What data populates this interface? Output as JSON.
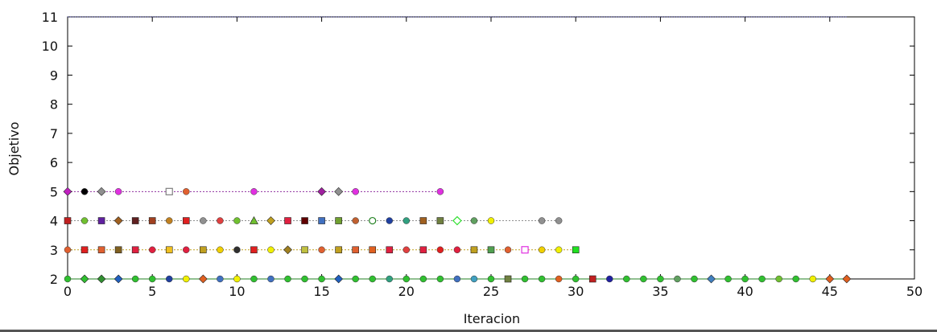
{
  "chart_data": {
    "type": "line",
    "title": "",
    "xlabel": "Iteracion",
    "ylabel": "Objetivo",
    "xlim": [
      0,
      50
    ],
    "ylim": [
      2,
      11
    ],
    "xticks": [
      0,
      5,
      10,
      15,
      20,
      25,
      30,
      35,
      40,
      45,
      50
    ],
    "yticks": [
      2,
      3,
      4,
      5,
      6,
      7,
      8,
      9,
      10,
      11
    ],
    "grid": false,
    "legend": "none",
    "series": [
      {
        "color": "#202080",
        "style": "dotted",
        "values": [
          [
            0,
            11
          ],
          [
            46,
            11
          ]
        ]
      },
      {
        "color": "#9030a0",
        "style": "dotted",
        "points": [
          {
            "x": 0,
            "marker": "diamond",
            "color": "#c020c0"
          },
          {
            "x": 1,
            "marker": "circle",
            "color": "#000000"
          },
          {
            "x": 2,
            "marker": "diamond",
            "color": "#909090"
          },
          {
            "x": 3,
            "marker": "circle",
            "color": "#e030e0"
          },
          {
            "x": 6,
            "marker": "square-open",
            "color": "#808080"
          },
          {
            "x": 7,
            "marker": "circle",
            "color": "#e06030"
          },
          {
            "x": 11,
            "marker": "circle",
            "color": "#e030e0"
          },
          {
            "x": 15,
            "marker": "diamond",
            "color": "#a020a0"
          },
          {
            "x": 16,
            "marker": "diamond",
            "color": "#909090"
          },
          {
            "x": 17,
            "marker": "circle",
            "color": "#e030e0"
          },
          {
            "x": 22,
            "marker": "circle",
            "color": "#e030e0"
          }
        ],
        "y": 5
      },
      {
        "color": "#909090",
        "style": "dotted",
        "points": [
          {
            "x": 0,
            "marker": "square",
            "color": "#c02020"
          },
          {
            "x": 1,
            "marker": "circle",
            "color": "#70c030"
          },
          {
            "x": 2,
            "marker": "square",
            "color": "#6020a0"
          },
          {
            "x": 3,
            "marker": "diamond",
            "color": "#a06020"
          },
          {
            "x": 4,
            "marker": "square",
            "color": "#602020"
          },
          {
            "x": 5,
            "marker": "square",
            "color": "#a04020"
          },
          {
            "x": 6,
            "marker": "circle",
            "color": "#c08020"
          },
          {
            "x": 7,
            "marker": "square",
            "color": "#e02020"
          },
          {
            "x": 8,
            "marker": "circle",
            "color": "#909090"
          },
          {
            "x": 9,
            "marker": "circle",
            "color": "#e04040"
          },
          {
            "x": 10,
            "marker": "circle",
            "color": "#70c030"
          },
          {
            "x": 11,
            "marker": "triangle",
            "color": "#70c030"
          },
          {
            "x": 12,
            "marker": "diamond",
            "color": "#c0a020"
          },
          {
            "x": 13,
            "marker": "square",
            "color": "#e02040"
          },
          {
            "x": 14,
            "marker": "square",
            "color": "#600000"
          },
          {
            "x": 15,
            "marker": "square",
            "color": "#4070c0"
          },
          {
            "x": 16,
            "marker": "square",
            "color": "#70a030"
          },
          {
            "x": 17,
            "marker": "circle",
            "color": "#c06030"
          },
          {
            "x": 18,
            "marker": "circle-open",
            "color": "#208020"
          },
          {
            "x": 19,
            "marker": "circle",
            "color": "#2040a0"
          },
          {
            "x": 20,
            "marker": "circle",
            "color": "#30a080"
          },
          {
            "x": 21,
            "marker": "square",
            "color": "#a06020"
          },
          {
            "x": 22,
            "marker": "square",
            "color": "#708040"
          },
          {
            "x": 23,
            "marker": "diamond-open",
            "color": "#30e030"
          },
          {
            "x": 24,
            "marker": "circle",
            "color": "#60a060"
          },
          {
            "x": 25,
            "marker": "circle",
            "color": "#f0f000"
          },
          {
            "x": 28,
            "marker": "circle",
            "color": "#909090"
          },
          {
            "x": 29,
            "marker": "circle",
            "color": "#909090"
          }
        ],
        "y": 4
      },
      {
        "color": "#c0a020",
        "style": "dotted",
        "points": [
          {
            "x": 0,
            "marker": "circle",
            "color": "#e06030"
          },
          {
            "x": 1,
            "marker": "square",
            "color": "#e02020"
          },
          {
            "x": 2,
            "marker": "square",
            "color": "#e06030"
          },
          {
            "x": 3,
            "marker": "square",
            "color": "#806020"
          },
          {
            "x": 4,
            "marker": "square",
            "color": "#e02040"
          },
          {
            "x": 5,
            "marker": "circle",
            "color": "#e02040"
          },
          {
            "x": 6,
            "marker": "square",
            "color": "#f0c020"
          },
          {
            "x": 7,
            "marker": "circle",
            "color": "#e02040"
          },
          {
            "x": 8,
            "marker": "square",
            "color": "#c0a020"
          },
          {
            "x": 9,
            "marker": "circle",
            "color": "#f0d000"
          },
          {
            "x": 10,
            "marker": "circle",
            "color": "#303030"
          },
          {
            "x": 11,
            "marker": "square",
            "color": "#e02020"
          },
          {
            "x": 12,
            "marker": "circle",
            "color": "#f0f000"
          },
          {
            "x": 13,
            "marker": "diamond",
            "color": "#a08020"
          },
          {
            "x": 14,
            "marker": "square",
            "color": "#c0c040"
          },
          {
            "x": 15,
            "marker": "circle",
            "color": "#e06030"
          },
          {
            "x": 16,
            "marker": "square",
            "color": "#c0a020"
          },
          {
            "x": 17,
            "marker": "square",
            "color": "#e06030"
          },
          {
            "x": 18,
            "marker": "square",
            "color": "#e06020"
          },
          {
            "x": 19,
            "marker": "square",
            "color": "#e02040"
          },
          {
            "x": 20,
            "marker": "circle",
            "color": "#e04040"
          },
          {
            "x": 21,
            "marker": "square",
            "color": "#e02040"
          },
          {
            "x": 22,
            "marker": "circle",
            "color": "#e02020"
          },
          {
            "x": 23,
            "marker": "circle",
            "color": "#e02040"
          },
          {
            "x": 24,
            "marker": "square",
            "color": "#c0a020"
          },
          {
            "x": 25,
            "marker": "square",
            "color": "#50a050"
          },
          {
            "x": 26,
            "marker": "circle",
            "color": "#e06030"
          },
          {
            "x": 27,
            "marker": "square-open",
            "color": "#e030e0"
          },
          {
            "x": 28,
            "marker": "circle",
            "color": "#f0d000"
          },
          {
            "x": 29,
            "marker": "circle",
            "color": "#f0f000"
          },
          {
            "x": 30,
            "marker": "square",
            "color": "#20e020"
          }
        ],
        "y": 3
      },
      {
        "color": "#208020",
        "style": "solid",
        "points": [
          {
            "x": 0,
            "marker": "circle",
            "color": "#30c030"
          },
          {
            "x": 1,
            "marker": "diamond",
            "color": "#30c030"
          },
          {
            "x": 2,
            "marker": "diamond",
            "color": "#309030"
          },
          {
            "x": 3,
            "marker": "diamond",
            "color": "#2060c0"
          },
          {
            "x": 4,
            "marker": "circle",
            "color": "#30c030"
          },
          {
            "x": 5,
            "marker": "circle",
            "color": "#30c030"
          },
          {
            "x": 6,
            "marker": "circle",
            "color": "#2040a0"
          },
          {
            "x": 7,
            "marker": "circle",
            "color": "#f0f000"
          },
          {
            "x": 8,
            "marker": "diamond",
            "color": "#e06020"
          },
          {
            "x": 9,
            "marker": "circle",
            "color": "#4070c0"
          },
          {
            "x": 10,
            "marker": "circle",
            "color": "#f0f000"
          },
          {
            "x": 11,
            "marker": "circle",
            "color": "#30c030"
          },
          {
            "x": 12,
            "marker": "circle",
            "color": "#4070c0"
          },
          {
            "x": 13,
            "marker": "circle",
            "color": "#30c030"
          },
          {
            "x": 14,
            "marker": "circle",
            "color": "#30c030"
          },
          {
            "x": 15,
            "marker": "circle",
            "color": "#30c030"
          },
          {
            "x": 16,
            "marker": "diamond",
            "color": "#2060c0"
          },
          {
            "x": 17,
            "marker": "circle",
            "color": "#30c030"
          },
          {
            "x": 18,
            "marker": "circle",
            "color": "#30c030"
          },
          {
            "x": 19,
            "marker": "circle",
            "color": "#30a080"
          },
          {
            "x": 20,
            "marker": "circle",
            "color": "#30c030"
          },
          {
            "x": 21,
            "marker": "circle",
            "color": "#30c030"
          },
          {
            "x": 22,
            "marker": "circle",
            "color": "#30c030"
          },
          {
            "x": 23,
            "marker": "circle",
            "color": "#4070c0"
          },
          {
            "x": 24,
            "marker": "circle",
            "color": "#40a0c0"
          },
          {
            "x": 25,
            "marker": "circle",
            "color": "#30c030"
          },
          {
            "x": 26,
            "marker": "square",
            "color": "#708040"
          },
          {
            "x": 27,
            "marker": "circle",
            "color": "#30c030"
          },
          {
            "x": 28,
            "marker": "circle",
            "color": "#30c030"
          },
          {
            "x": 29,
            "marker": "circle",
            "color": "#e06020"
          },
          {
            "x": 30,
            "marker": "circle",
            "color": "#30c030"
          },
          {
            "x": 31,
            "marker": "square",
            "color": "#c02020"
          },
          {
            "x": 32,
            "marker": "circle",
            "color": "#2020a0"
          },
          {
            "x": 33,
            "marker": "circle",
            "color": "#30c030"
          },
          {
            "x": 34,
            "marker": "circle",
            "color": "#30c030"
          },
          {
            "x": 35,
            "marker": "circle",
            "color": "#30c030"
          },
          {
            "x": 36,
            "marker": "circle",
            "color": "#60a060"
          },
          {
            "x": 37,
            "marker": "circle",
            "color": "#30c030"
          },
          {
            "x": 38,
            "marker": "diamond",
            "color": "#4080c0"
          },
          {
            "x": 39,
            "marker": "circle",
            "color": "#30c030"
          },
          {
            "x": 40,
            "marker": "circle",
            "color": "#30c030"
          },
          {
            "x": 41,
            "marker": "circle",
            "color": "#30c030"
          },
          {
            "x": 42,
            "marker": "circle",
            "color": "#70c030"
          },
          {
            "x": 43,
            "marker": "circle",
            "color": "#30c030"
          },
          {
            "x": 44,
            "marker": "circle",
            "color": "#f0f000"
          },
          {
            "x": 45,
            "marker": "diamond",
            "color": "#e06020"
          },
          {
            "x": 46,
            "marker": "diamond",
            "color": "#e06020"
          }
        ],
        "y": 2
      }
    ]
  }
}
